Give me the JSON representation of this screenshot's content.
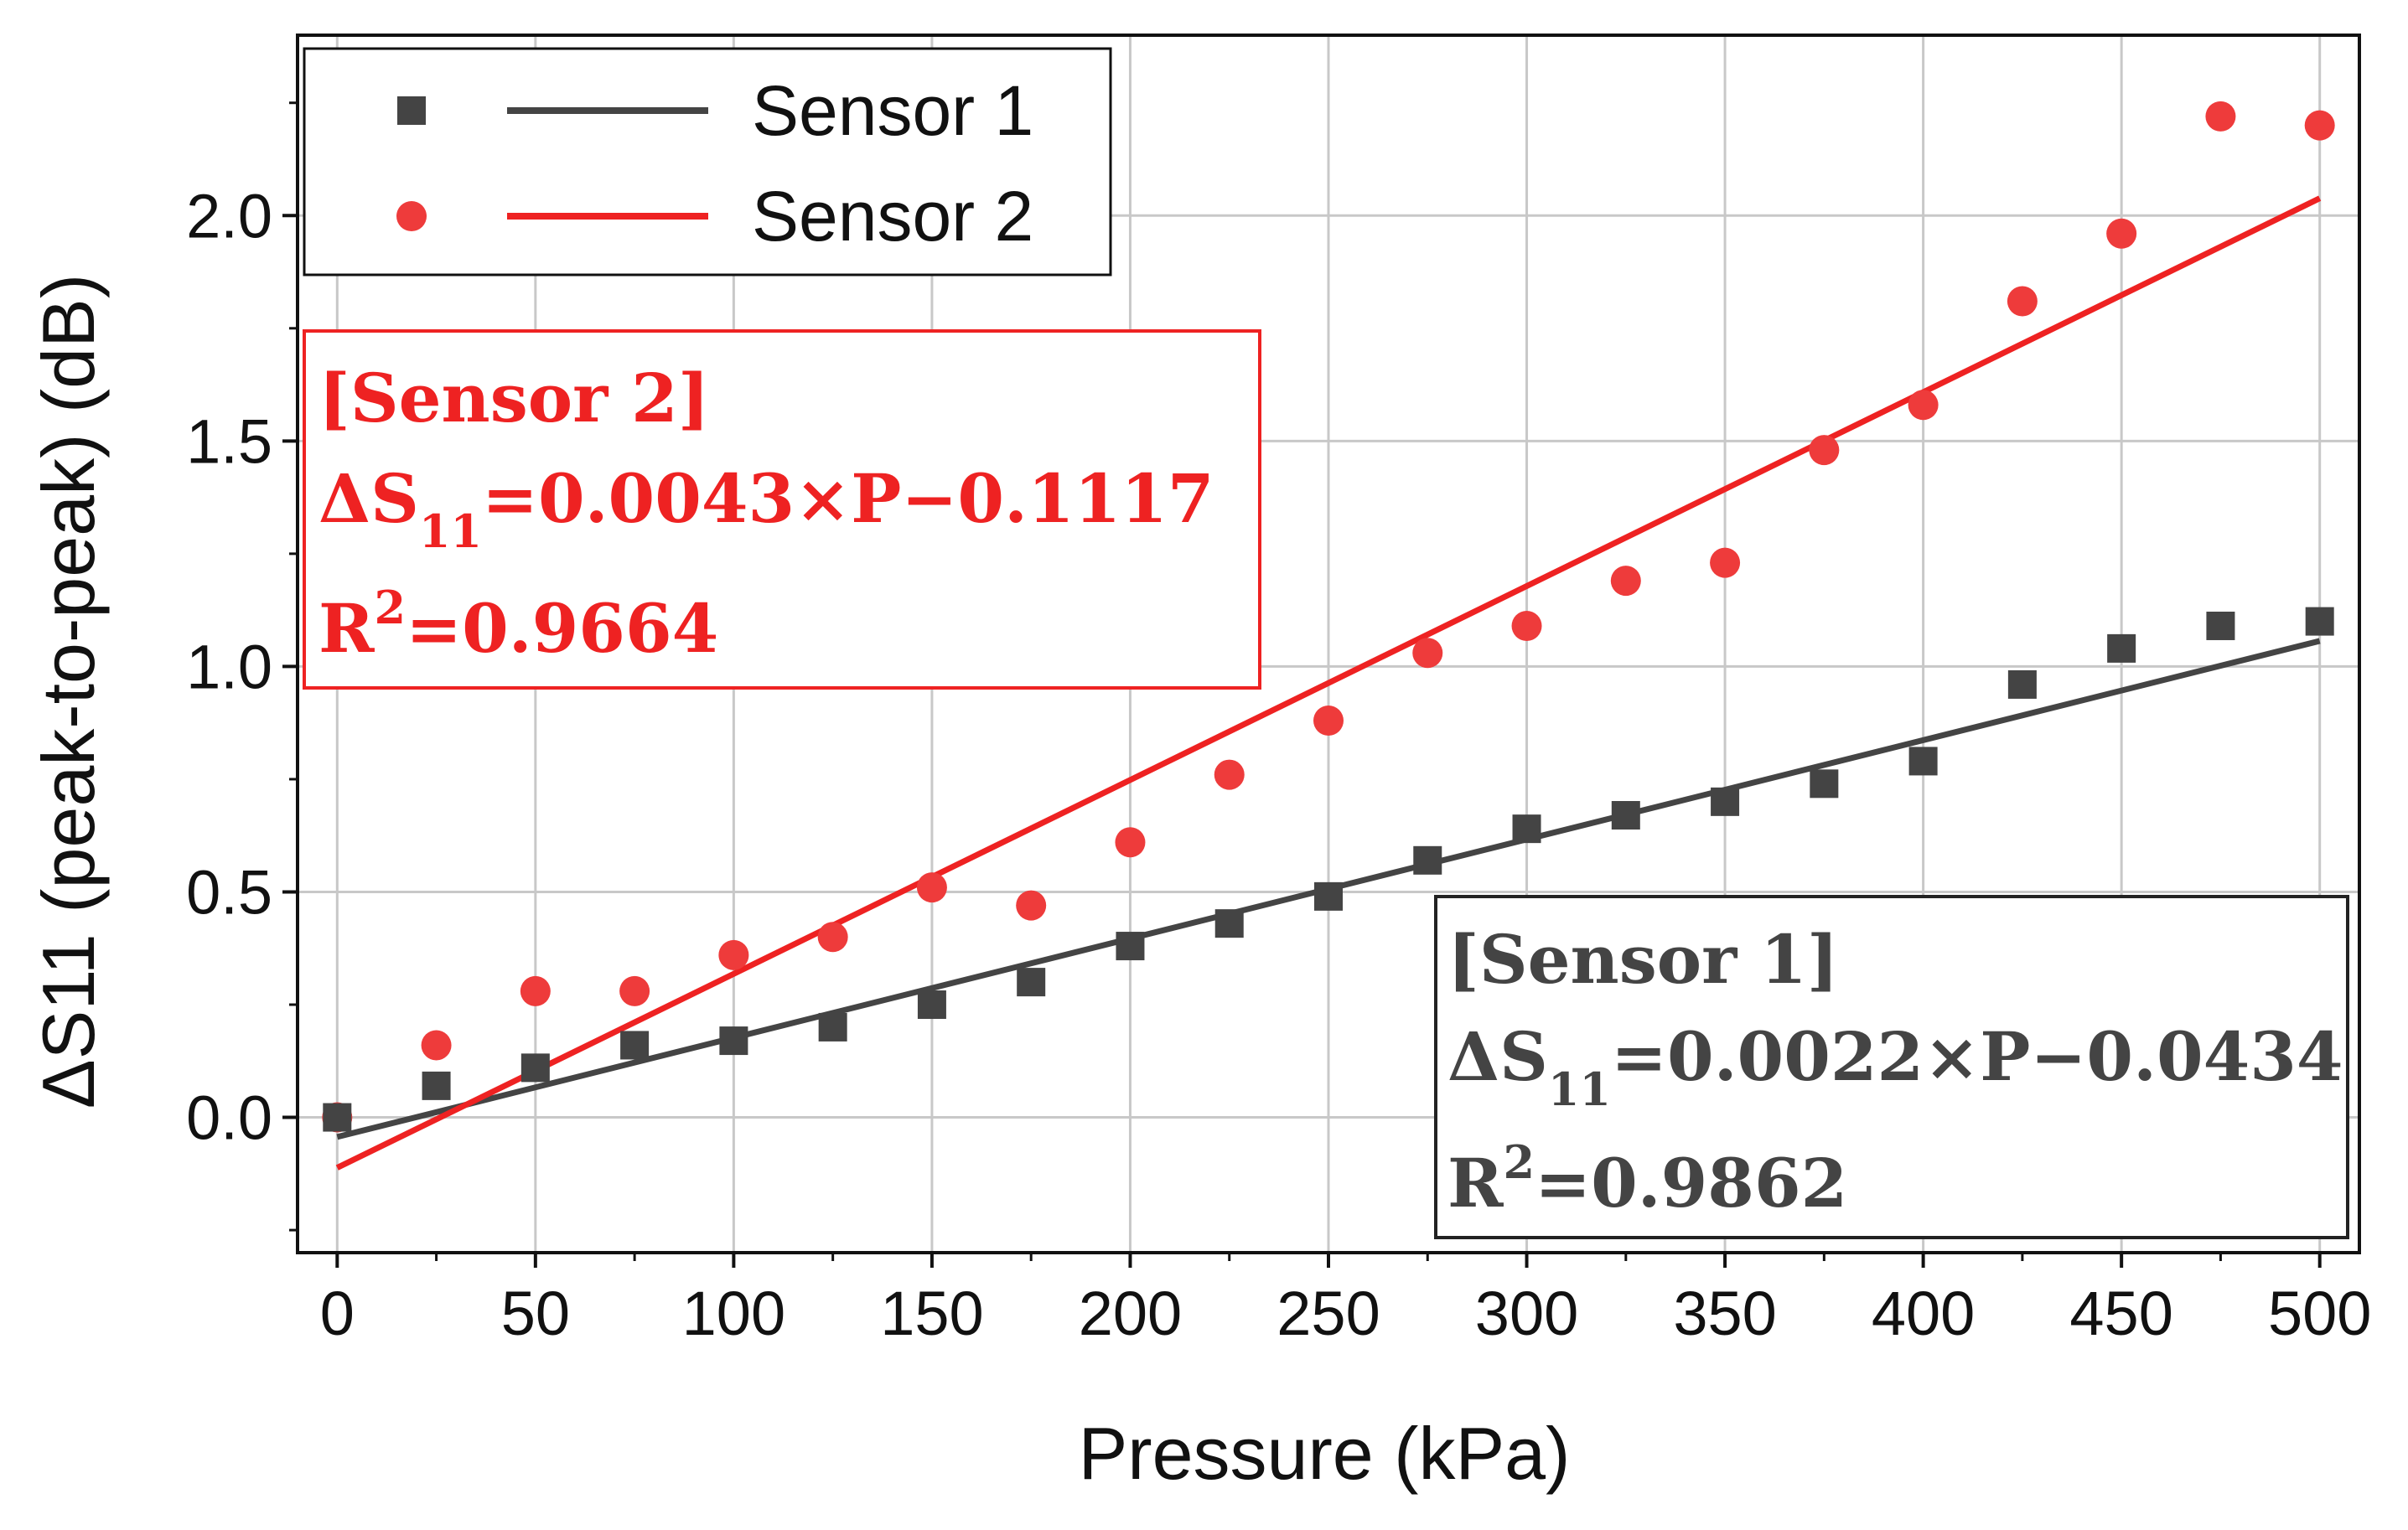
{
  "chart_data": {
    "type": "scatter",
    "title": "",
    "xlabel": "Pressure (kPa)",
    "ylabel": "ΔS11 (peak-to-peak) (dB)",
    "xlim": [
      -10,
      510
    ],
    "ylim": [
      -0.3,
      2.4
    ],
    "grid": true,
    "legend_position": "top-left",
    "x_ticks": [
      0,
      50,
      100,
      150,
      200,
      250,
      300,
      350,
      400,
      450,
      500
    ],
    "y_ticks": [
      0.0,
      0.5,
      1.0,
      1.5,
      2.0
    ],
    "x_tick_labels": [
      "0",
      "50",
      "100",
      "150",
      "200",
      "250",
      "300",
      "350",
      "400",
      "450",
      "500"
    ],
    "y_tick_labels": [
      "0.0",
      "0.5",
      "1.0",
      "1.5",
      "2.0"
    ],
    "x": [
      0,
      25,
      50,
      75,
      100,
      125,
      150,
      175,
      200,
      225,
      250,
      275,
      300,
      325,
      350,
      375,
      400,
      425,
      450,
      475,
      500
    ],
    "series": [
      {
        "name": "Sensor 1",
        "marker": "square",
        "color": "#444444",
        "values": [
          0.0,
          0.07,
          0.11,
          0.16,
          0.17,
          0.2,
          0.25,
          0.3,
          0.38,
          0.43,
          0.49,
          0.57,
          0.64,
          0.67,
          0.7,
          0.74,
          0.79,
          0.96,
          1.04,
          1.09,
          1.1
        ],
        "fit": {
          "slope": 0.0022,
          "intercept": -0.0434,
          "x_range": [
            0,
            500
          ]
        }
      },
      {
        "name": "Sensor 2",
        "marker": "circle",
        "color": "#ee2222",
        "values": [
          0.0,
          0.16,
          0.28,
          0.28,
          0.36,
          0.4,
          0.51,
          0.47,
          0.61,
          0.76,
          0.88,
          1.03,
          1.09,
          1.19,
          1.23,
          1.48,
          1.58,
          1.81,
          1.96,
          2.22,
          2.2
        ],
        "fit": {
          "slope": 0.0043,
          "intercept": -0.1117,
          "x_range": [
            0,
            500
          ]
        }
      }
    ],
    "annotations": {
      "sensor2": {
        "title": "[Sensor 2]",
        "eq_prefix": "ΔS",
        "eq_sub": "11",
        "eq_rest": "=0.0043×P−0.1117",
        "r_prefix": "R",
        "r_sup": "2",
        "r_rest": "=0.9664",
        "color": "#ee2222"
      },
      "sensor1": {
        "title": "[Sensor 1]",
        "eq_prefix": "ΔS",
        "eq_sub": "11",
        "eq_rest": "=0.0022×P−0.0434",
        "r_prefix": "R",
        "r_sup": "2",
        "r_rest": "=0.9862",
        "color": "#444444"
      }
    }
  }
}
